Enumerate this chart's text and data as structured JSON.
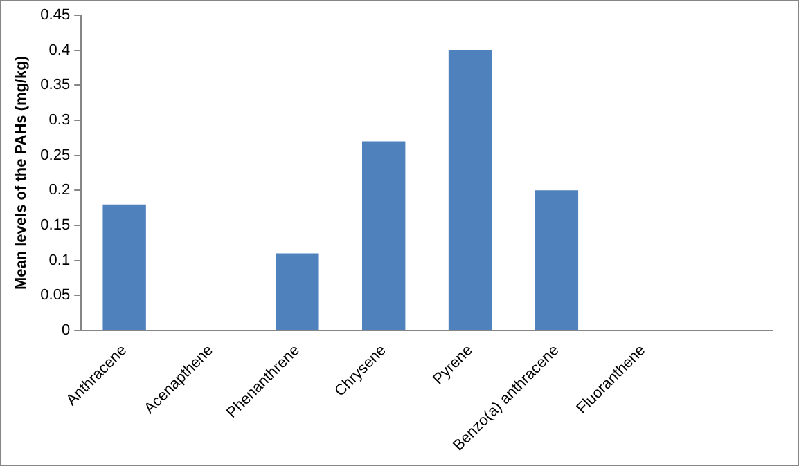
{
  "chart_data": {
    "type": "bar",
    "ylabel": "Mean levels of the PAHs (mg/kg)",
    "categories": [
      "Anthracene",
      "Acenapthene",
      "Phenanthrene",
      "Chrysene",
      "Pyrene",
      "Benzo(a) anthracene",
      "Fluoranthene",
      null
    ],
    "values": [
      0.18,
      0,
      0.11,
      0.27,
      0.4,
      0.2,
      0,
      null
    ],
    "color": "#4f81bd",
    "ylim": [
      0,
      0.45
    ],
    "yticks": [
      0,
      0.05,
      0.1,
      0.15,
      0.2,
      0.25,
      0.3,
      0.35,
      0.4,
      0.45
    ],
    "grid": false,
    "legend": false
  }
}
